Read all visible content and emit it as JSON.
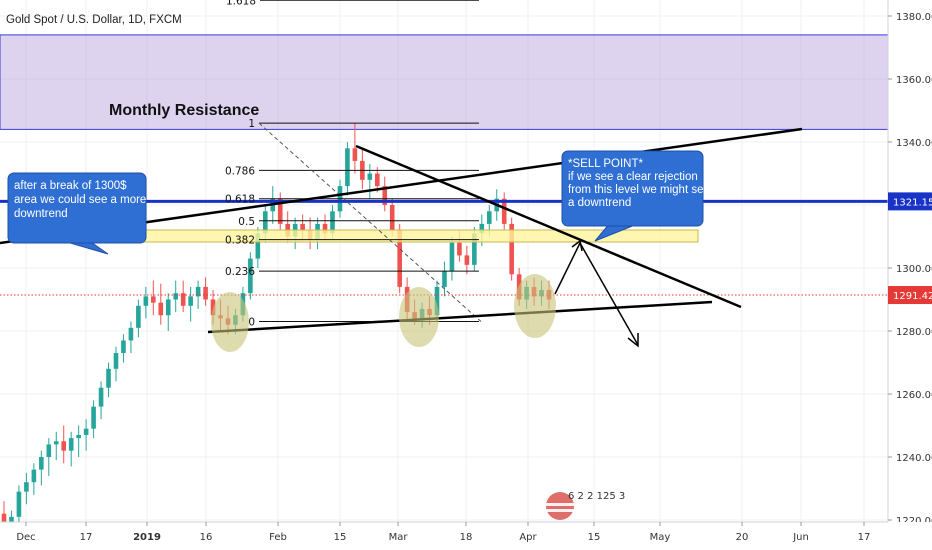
{
  "header": {
    "title": "Gold Spot / U.S. Dollar, 1D, FXCM"
  },
  "colors": {
    "up": "#26a69a",
    "down": "#ef5350",
    "resistance_zone": "#b39ddb",
    "horizontal_line": "#1a33c7",
    "support_zone": "#fff59d",
    "callout": "#2f6fd4",
    "ellipse": "#c8c47a",
    "price_line": "#e53935"
  },
  "annotations": {
    "monthly_resistance": "Monthly Resistance",
    "left_callout": [
      "after a break of 1300$",
      "area we could see a more",
      "downtrend"
    ],
    "right_callout": [
      "*SELL POINT*",
      "if we see a clear rejection",
      "from this level we might see",
      "a downtrend"
    ],
    "fib_levels": [
      "1.618",
      "1",
      "0.786",
      "0.618",
      "0.5",
      "0.382",
      "0.236",
      "0"
    ],
    "watermark_digits": "6 2 2 125 3"
  },
  "badges": {
    "horizontal_level": "1321.15",
    "last_price": "1291.42"
  },
  "chart_data": {
    "type": "candlestick",
    "title": "Gold Spot / U.S. Dollar, 1D, FXCM",
    "y_ticks": [
      1220,
      1240,
      1260,
      1280,
      1300,
      1320,
      1340,
      1360,
      1380
    ],
    "x_ticks": [
      "Dec",
      "17",
      "2019",
      "16",
      "Feb",
      "15",
      "Mar",
      "18",
      "Apr",
      "15",
      "May",
      "20",
      "Jun",
      "17"
    ],
    "ylim": [
      1212,
      1388
    ],
    "resistance_zone": [
      1344,
      1374
    ],
    "horizontal_level": 1321.15,
    "last_price": 1291.42,
    "support_zone": [
      1309,
      1312
    ],
    "fib_levels": [
      {
        "label": "1.618",
        "price": 1385
      },
      {
        "label": "1",
        "price": 1346
      },
      {
        "label": "0.786",
        "price": 1331
      },
      {
        "label": "0.618",
        "price": 1322
      },
      {
        "label": "0.5",
        "price": 1315
      },
      {
        "label": "0.382",
        "price": 1309
      },
      {
        "label": "0.236",
        "price": 1299
      },
      {
        "label": "0",
        "price": 1283
      }
    ],
    "candles": [
      [
        1222,
        1226,
        1216,
        1218
      ],
      [
        1218,
        1223,
        1214,
        1221
      ],
      [
        1221,
        1231,
        1219,
        1229
      ],
      [
        1229,
        1235,
        1225,
        1232
      ],
      [
        1232,
        1238,
        1228,
        1236
      ],
      [
        1236,
        1242,
        1231,
        1240
      ],
      [
        1240,
        1246,
        1234,
        1244
      ],
      [
        1244,
        1248,
        1239,
        1245
      ],
      [
        1245,
        1250,
        1238,
        1242
      ],
      [
        1242,
        1248,
        1237,
        1246
      ],
      [
        1246,
        1250,
        1240,
        1247
      ],
      [
        1247,
        1252,
        1242,
        1249
      ],
      [
        1249,
        1258,
        1246,
        1256
      ],
      [
        1256,
        1264,
        1252,
        1262
      ],
      [
        1262,
        1270,
        1259,
        1268
      ],
      [
        1268,
        1275,
        1264,
        1273
      ],
      [
        1273,
        1279,
        1270,
        1277
      ],
      [
        1277,
        1283,
        1273,
        1281
      ],
      [
        1281,
        1290,
        1278,
        1288
      ],
      [
        1288,
        1294,
        1284,
        1291
      ],
      [
        1291,
        1296,
        1285,
        1289
      ],
      [
        1289,
        1295,
        1282,
        1285
      ],
      [
        1285,
        1292,
        1280,
        1290
      ],
      [
        1290,
        1296,
        1286,
        1292
      ],
      [
        1292,
        1296,
        1286,
        1288
      ],
      [
        1288,
        1294,
        1283,
        1291
      ],
      [
        1291,
        1296,
        1287,
        1294
      ],
      [
        1294,
        1297,
        1288,
        1290
      ],
      [
        1290,
        1293,
        1282,
        1285
      ],
      [
        1285,
        1290,
        1280,
        1284
      ],
      [
        1284,
        1288,
        1279,
        1282
      ],
      [
        1282,
        1287,
        1279,
        1285
      ],
      [
        1285,
        1294,
        1283,
        1292
      ],
      [
        1292,
        1305,
        1290,
        1303
      ],
      [
        1303,
        1313,
        1300,
        1311
      ],
      [
        1311,
        1320,
        1308,
        1318
      ],
      [
        1318,
        1326,
        1314,
        1322
      ],
      [
        1322,
        1324,
        1312,
        1314
      ],
      [
        1314,
        1318,
        1308,
        1310
      ],
      [
        1310,
        1316,
        1306,
        1314
      ],
      [
        1314,
        1317,
        1309,
        1312
      ],
      [
        1312,
        1316,
        1306,
        1309
      ],
      [
        1309,
        1316,
        1306,
        1314
      ],
      [
        1314,
        1317,
        1309,
        1311
      ],
      [
        1311,
        1320,
        1309,
        1318
      ],
      [
        1318,
        1328,
        1316,
        1326
      ],
      [
        1326,
        1340,
        1323,
        1338
      ],
      [
        1338,
        1346,
        1330,
        1334
      ],
      [
        1334,
        1338,
        1325,
        1328
      ],
      [
        1328,
        1333,
        1322,
        1330
      ],
      [
        1330,
        1332,
        1324,
        1326
      ],
      [
        1326,
        1329,
        1318,
        1320
      ],
      [
        1320,
        1322,
        1310,
        1312
      ],
      [
        1312,
        1314,
        1292,
        1294
      ],
      [
        1294,
        1297,
        1283,
        1286
      ],
      [
        1286,
        1290,
        1282,
        1284
      ],
      [
        1284,
        1289,
        1281,
        1287
      ],
      [
        1287,
        1291,
        1282,
        1285
      ],
      [
        1285,
        1296,
        1283,
        1294
      ],
      [
        1294,
        1302,
        1291,
        1299
      ],
      [
        1299,
        1310,
        1296,
        1308
      ],
      [
        1308,
        1312,
        1302,
        1304
      ],
      [
        1304,
        1307,
        1298,
        1301
      ],
      [
        1301,
        1313,
        1299,
        1311
      ],
      [
        1311,
        1317,
        1307,
        1314
      ],
      [
        1314,
        1320,
        1310,
        1318
      ],
      [
        1318,
        1325,
        1315,
        1322
      ],
      [
        1322,
        1324,
        1312,
        1314
      ],
      [
        1314,
        1316,
        1296,
        1298
      ],
      [
        1298,
        1300,
        1288,
        1290
      ],
      [
        1290,
        1296,
        1287,
        1294
      ],
      [
        1294,
        1297,
        1288,
        1291
      ],
      [
        1291,
        1296,
        1288,
        1293
      ],
      [
        1293,
        1296,
        1287,
        1290
      ]
    ]
  }
}
